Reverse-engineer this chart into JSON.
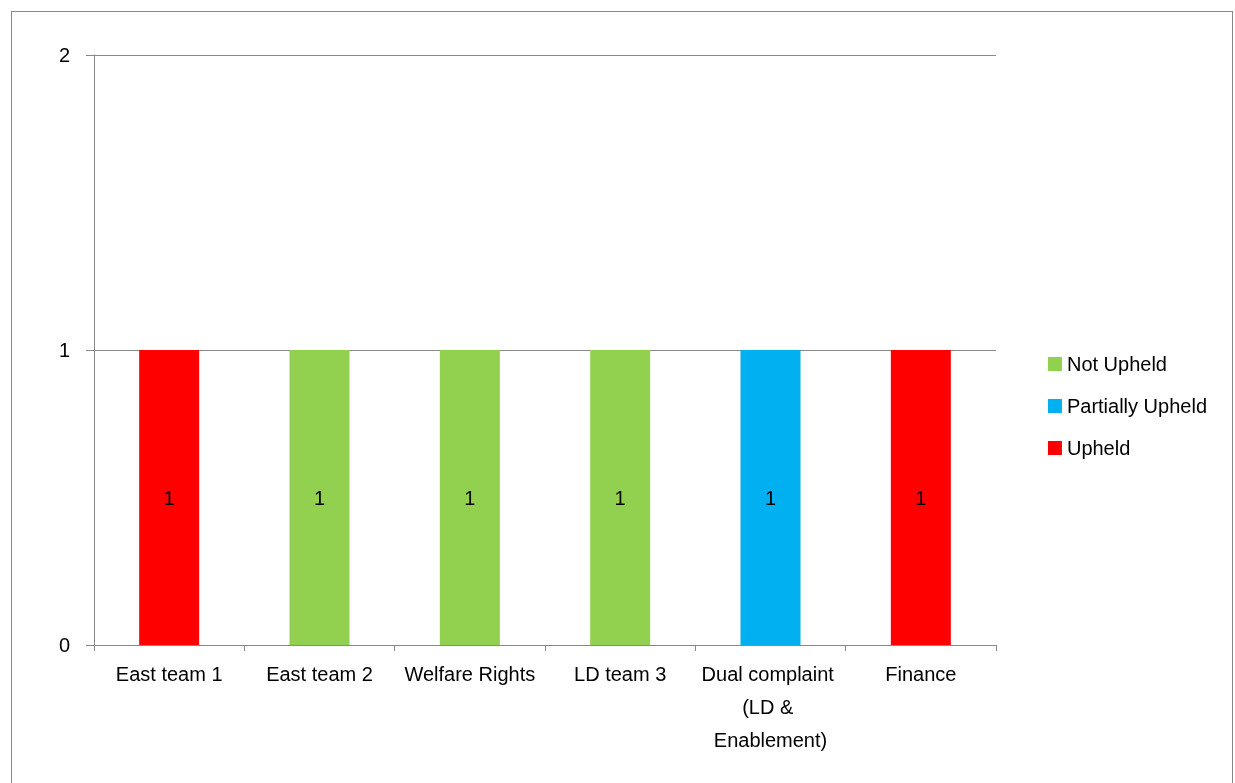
{
  "chart_data": {
    "type": "bar",
    "stacked": true,
    "categories": [
      "East team 1",
      "East team 2",
      "Welfare Rights",
      "LD team 3",
      "Dual complaint (LD & Enablement)",
      "Finance"
    ],
    "series": [
      {
        "name": "Not Upheld",
        "color": "#92d050",
        "values": [
          null,
          1,
          1,
          1,
          null,
          null
        ]
      },
      {
        "name": "Partially Upheld",
        "color": "#00b0f0",
        "values": [
          null,
          null,
          null,
          null,
          1,
          null
        ]
      },
      {
        "name": "Upheld",
        "color": "#ff0000",
        "values": [
          1,
          null,
          null,
          null,
          null,
          1
        ]
      }
    ],
    "ylim": [
      0,
      2
    ],
    "yticks": [
      0,
      1,
      2
    ],
    "grid": "y",
    "legend": "right",
    "data_labels": true
  }
}
